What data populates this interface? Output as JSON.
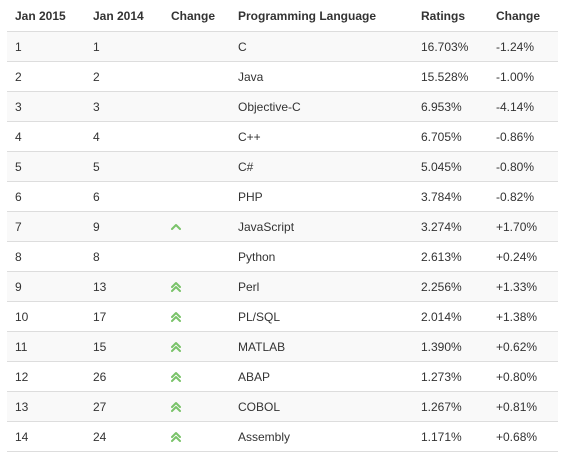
{
  "headers": [
    "Jan 2015",
    "Jan 2014",
    "Change",
    "Programming Language",
    "Ratings",
    "Change"
  ],
  "colors": {
    "arrow": "#7ac36a",
    "row_alt": "#f9f9f9",
    "border": "#dddddd"
  },
  "rows": [
    {
      "rank2015": "1",
      "rank2014": "1",
      "trend": "none",
      "language": "C",
      "rating": "16.703%",
      "change": "-1.24%"
    },
    {
      "rank2015": "2",
      "rank2014": "2",
      "trend": "none",
      "language": "Java",
      "rating": "15.528%",
      "change": "-1.00%"
    },
    {
      "rank2015": "3",
      "rank2014": "3",
      "trend": "none",
      "language": "Objective-C",
      "rating": "6.953%",
      "change": "-4.14%"
    },
    {
      "rank2015": "4",
      "rank2014": "4",
      "trend": "none",
      "language": "C++",
      "rating": "6.705%",
      "change": "-0.86%"
    },
    {
      "rank2015": "5",
      "rank2014": "5",
      "trend": "none",
      "language": "C#",
      "rating": "5.045%",
      "change": "-0.80%"
    },
    {
      "rank2015": "6",
      "rank2014": "6",
      "trend": "none",
      "language": "PHP",
      "rating": "3.784%",
      "change": "-0.82%"
    },
    {
      "rank2015": "7",
      "rank2014": "9",
      "trend": "up",
      "language": "JavaScript",
      "rating": "3.274%",
      "change": "+1.70%"
    },
    {
      "rank2015": "8",
      "rank2014": "8",
      "trend": "none",
      "language": "Python",
      "rating": "2.613%",
      "change": "+0.24%"
    },
    {
      "rank2015": "9",
      "rank2014": "13",
      "trend": "double-up",
      "language": "Perl",
      "rating": "2.256%",
      "change": "+1.33%"
    },
    {
      "rank2015": "10",
      "rank2014": "17",
      "trend": "double-up",
      "language": "PL/SQL",
      "rating": "2.014%",
      "change": "+1.38%"
    },
    {
      "rank2015": "11",
      "rank2014": "15",
      "trend": "double-up",
      "language": "MATLAB",
      "rating": "1.390%",
      "change": "+0.62%"
    },
    {
      "rank2015": "12",
      "rank2014": "26",
      "trend": "double-up",
      "language": "ABAP",
      "rating": "1.273%",
      "change": "+0.80%"
    },
    {
      "rank2015": "13",
      "rank2014": "27",
      "trend": "double-up",
      "language": "COBOL",
      "rating": "1.267%",
      "change": "+0.81%"
    },
    {
      "rank2015": "14",
      "rank2014": "24",
      "trend": "double-up",
      "language": "Assembly",
      "rating": "1.171%",
      "change": "+0.68%"
    }
  ]
}
